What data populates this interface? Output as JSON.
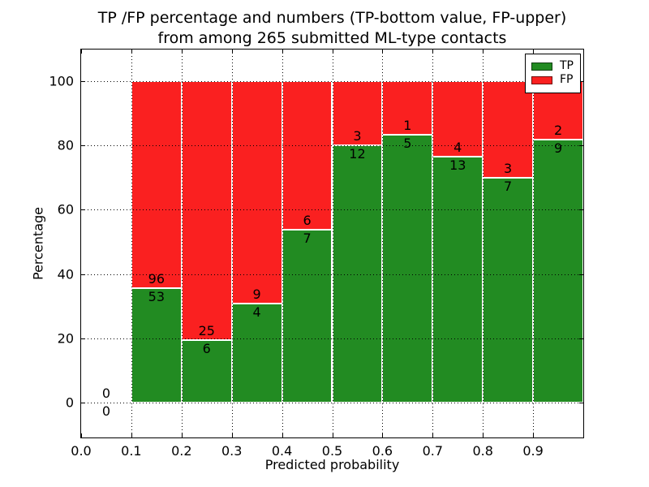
{
  "figure": {
    "title_line1": "TP /FP percentage and numbers (TP-bottom value, FP-upper)",
    "title_line2": "from among 265 submitted ML-type contacts"
  },
  "legend": {
    "tp_label": "TP",
    "fp_label": "FP"
  },
  "chart_data": {
    "type": "bar",
    "stacked": true,
    "title": "TP /FP percentage and numbers (TP-bottom value, FP-upper)\nfrom among 265 submitted ML-type contacts",
    "xlabel": "Predicted probability",
    "ylabel": "Percentage",
    "total_contacts": 265,
    "grid": true,
    "legend_position": "upper right",
    "xlim": [
      0.0,
      1.0
    ],
    "ylim": [
      -10.8,
      109.8
    ],
    "x_tick_labels": [
      "0.0",
      "0.1",
      "0.2",
      "0.3",
      "0.4",
      "0.5",
      "0.6",
      "0.7",
      "0.8",
      "0.9"
    ],
    "x_tick_values": [
      0.0,
      0.1,
      0.2,
      0.3,
      0.4,
      0.5,
      0.6,
      0.7,
      0.8,
      0.9
    ],
    "y_tick_values": [
      0,
      20,
      40,
      60,
      80,
      100
    ],
    "series": [
      {
        "name": "TP",
        "color": "#228b22"
      },
      {
        "name": "FP",
        "color": "#fa2020"
      }
    ],
    "bins": [
      {
        "x0": 0.0,
        "x1": 0.1,
        "tp": 0,
        "fp": 0
      },
      {
        "x0": 0.1,
        "x1": 0.2,
        "tp": 53,
        "fp": 96
      },
      {
        "x0": 0.2,
        "x1": 0.3,
        "tp": 6,
        "fp": 25
      },
      {
        "x0": 0.3,
        "x1": 0.4,
        "tp": 4,
        "fp": 9
      },
      {
        "x0": 0.4,
        "x1": 0.5,
        "tp": 7,
        "fp": 6
      },
      {
        "x0": 0.5,
        "x1": 0.6,
        "tp": 12,
        "fp": 3
      },
      {
        "x0": 0.6,
        "x1": 0.7,
        "tp": 5,
        "fp": 1
      },
      {
        "x0": 0.7,
        "x1": 0.8,
        "tp": 13,
        "fp": 4
      },
      {
        "x0": 0.8,
        "x1": 0.9,
        "tp": 7,
        "fp": 3
      },
      {
        "x0": 0.9,
        "x1": 1.0,
        "tp": 9,
        "fp": 2
      }
    ]
  }
}
